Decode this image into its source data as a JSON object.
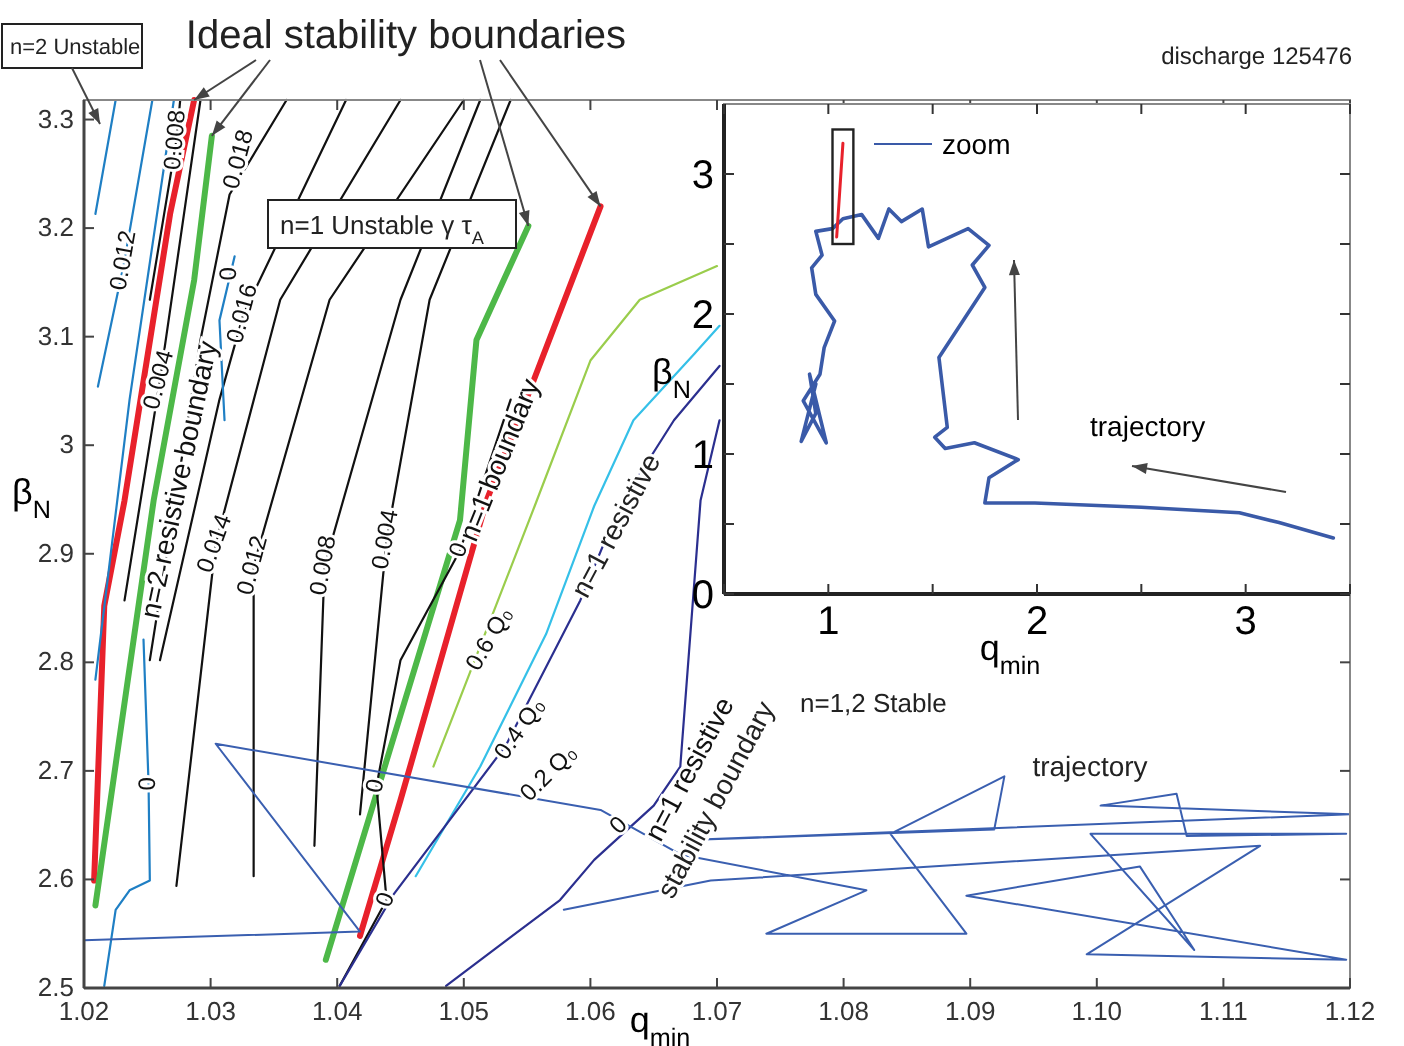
{
  "chart_data": [
    {
      "type": "line",
      "xlabel": "q$_{min}$",
      "ylabel": "β$_{N}$",
      "xlim": [
        1.02,
        1.12
      ],
      "ylim": [
        2.5,
        3.318
      ],
      "xticks": [
        1.02,
        1.03,
        1.04,
        1.05,
        1.06,
        1.07,
        1.08,
        1.09,
        {
          "value": 1.1,
          "label": "1.10"
        },
        1.11,
        1.12
      ],
      "yticks": [
        2.5,
        2.6,
        2.7,
        2.8,
        2.9,
        3,
        3.1,
        3.2,
        3.3
      ],
      "series": [
        {
          "color": "#e8212b",
          "x": [
            1.0287,
            1.0268,
            1.0232,
            1.0216,
            1.0208
          ],
          "values": [
            3.318,
            3.213,
            2.949,
            2.852,
            2.599
          ]
        },
        {
          "color": "#e8212b",
          "x": [
            1.0608,
            1.0549,
            1.0518,
            1.045,
            1.0418
          ],
          "values": [
            3.22,
            3.041,
            2.949,
            2.673,
            2.548
          ]
        },
        {
          "color": "#4db848",
          "x": [
            1.0301,
            1.0287,
            1.0255,
            1.0209
          ],
          "values": [
            3.285,
            3.152,
            2.949,
            2.576
          ]
        },
        {
          "color": "#4db848",
          "x": [
            1.0551,
            1.051,
            1.0497,
            1.0391
          ],
          "values": [
            3.202,
            3.097,
            2.931,
            2.526
          ]
        },
        {
          "color": "#111111",
          "x": [
            1.0252,
            1.0292,
            1.0315,
            1.036
          ],
          "values": [
            2.802,
            3.097,
            3.231,
            3.318
          ]
        },
        {
          "color": "#111111",
          "x": [
            1.026,
            1.0307,
            1.0326,
            1.0407
          ],
          "values": [
            2.802,
            3.042,
            3.121,
            3.318
          ]
        },
        {
          "color": "#111111",
          "x": [
            1.0273,
            1.0304,
            1.0355,
            1.045
          ],
          "values": [
            2.594,
            2.909,
            3.134,
            3.318
          ]
        },
        {
          "color": "#111111",
          "x": [
            1.0334,
            1.0334,
            1.0394,
            1.05
          ],
          "values": [
            2.603,
            2.889,
            3.134,
            3.318
          ]
        },
        {
          "color": "#111111",
          "x": [
            1.0382,
            1.039,
            1.045,
            1.0513
          ],
          "values": [
            2.631,
            2.889,
            3.134,
            3.318
          ]
        },
        {
          "color": "#111111",
          "x": [
            1.0418,
            1.0439,
            1.0473,
            1.0537
          ],
          "values": [
            2.66,
            2.913,
            3.134,
            3.318
          ]
        },
        {
          "color": "#111111",
          "x": [
            1.0402,
            1.0439,
            1.0431,
            1.045,
            1.0497,
            1.0537
          ],
          "values": [
            2.502,
            2.581,
            2.686,
            2.802,
            2.903,
            3.042
          ]
        },
        {
          "color": "#111111",
          "x": [
            1.0252,
            1.0273,
            1.0276
          ],
          "values": [
            3.134,
            3.281,
            3.318
          ]
        },
        {
          "color": "#111111",
          "x": [
            1.0232,
            1.026,
            1.0292
          ],
          "values": [
            2.857,
            3.06,
            3.318
          ]
        },
        {
          "color": "#1f7fc4",
          "x": [
            1.0209,
            1.0225
          ],
          "values": [
            3.213,
            3.318
          ]
        },
        {
          "color": "#1f7fc4",
          "x": [
            1.0211,
            1.0232,
            1.0254
          ],
          "values": [
            3.054,
            3.17,
            3.318
          ]
        },
        {
          "color": "#1f7fc4",
          "x": [
            1.0209,
            1.0236,
            1.0271
          ],
          "values": [
            2.784,
            3.042,
            3.318
          ]
        },
        {
          "color": "#1f7fc4",
          "x": [
            1.0311,
            1.0307,
            1.0319
          ],
          "values": [
            3.023,
            3.115,
            3.174
          ]
        },
        {
          "color": "#1f7fc4",
          "x": [
            1.0216,
            1.0225,
            1.0236,
            1.0252,
            1.0251,
            1.0247
          ],
          "values": [
            2.502,
            2.572,
            2.59,
            2.599,
            2.688,
            2.821
          ]
        },
        {
          "color": "#9acd4c",
          "x": [
            1.07,
            1.0639,
            1.06,
            1.0556,
            1.0476
          ],
          "values": [
            3.165,
            3.134,
            3.078,
            2.944,
            2.704
          ]
        },
        {
          "color": "#35c0e8",
          "x": [
            1.0702,
            1.0682,
            1.0634,
            1.0603,
            1.0565,
            1.0513,
            1.0462
          ],
          "values": [
            3.11,
            3.084,
            3.023,
            2.944,
            2.826,
            2.704,
            2.603
          ]
        },
        {
          "color": "#2b2f8f",
          "x": [
            1.0702,
            1.0666,
            1.0623,
            1.0592,
            1.0533,
            1.0445,
            1.0402
          ],
          "values": [
            3.073,
            3.023,
            2.944,
            2.857,
            2.723,
            2.587,
            2.502
          ]
        },
        {
          "color": "#2b2f8f",
          "x": [
            1.0702,
            1.0687,
            1.0671,
            1.065,
            1.0603,
            1.0576,
            1.0486
          ],
          "values": [
            3.023,
            2.949,
            2.704,
            2.668,
            2.618,
            2.581,
            2.502
          ]
        },
        {
          "color": "#3a5fb0",
          "x": [
            1.02,
            1.0418,
            1.0304,
            1.0608,
            1.0671,
            1.0818,
            1.0739,
            1.0897,
            1.0837,
            1.0927,
            1.0919,
            1.0671,
            1.12,
            1.1003,
            1.1063,
            1.1071,
            1.1197,
            1.0995,
            1.1077,
            1.1034,
            1.0897,
            1.1197,
            1.0992,
            1.1129,
            1.0695,
            1.0579
          ],
          "values": [
            2.544,
            2.552,
            2.725,
            2.664,
            2.623,
            2.59,
            2.55,
            2.55,
            2.642,
            2.695,
            2.646,
            2.636,
            2.66,
            2.668,
            2.679,
            2.64,
            2.642,
            2.642,
            2.535,
            2.612,
            2.585,
            2.526,
            2.531,
            2.631,
            2.599,
            2.572
          ]
        }
      ],
      "annotations": [
        "n=2 Unstable",
        "n=1 Unstable γ τ$_{A}$",
        "discharge 125476",
        "n=1,2 Stable",
        "trajectory",
        "n=1 resistive",
        "stability boundary",
        {
          "text": "0.018",
          "x": 1.0323,
          "y": 3.263
        },
        {
          "text": "0.016",
          "x": 1.0326,
          "y": 3.121
        },
        {
          "text": "0.014",
          "x": 1.0304,
          "y": 2.909
        },
        {
          "text": "0.012",
          "x": 1.0334,
          "y": 2.889
        },
        {
          "text": "0.008",
          "x": 1.039,
          "y": 2.889
        },
        {
          "text": "0.004",
          "x": 1.0439,
          "y": 2.913
        },
        {
          "text": "0.012",
          "x": 1.0232,
          "y": 3.17
        },
        {
          "text": "0.008",
          "x": 1.0273,
          "y": 3.281
        },
        {
          "text": "0.004",
          "x": 1.026,
          "y": 3.06
        },
        {
          "text": "0",
          "x": 1.0315,
          "y": 3.158
        },
        {
          "text": "0",
          "x": 1.0251,
          "y": 2.688
        },
        {
          "text": "0",
          "x": 1.0439,
          "y": 2.581
        },
        {
          "text": "0",
          "x": 1.0431,
          "y": 2.686
        },
        {
          "text": "0",
          "x": 1.0497,
          "y": 2.903
        },
        {
          "text": "0",
          "x": 1.0623,
          "y": 2.649
        },
        {
          "text": "0.6 Q₀",
          "x": 1.0521,
          "y": 2.821
        },
        {
          "text": "0.4 Q₀",
          "x": 1.0545,
          "y": 2.738
        },
        {
          "text": "0.2 Q₀",
          "x": 1.0533,
          "y": 2.723
        },
        {
          "text": "n=2 resistive boundary",
          "x": 1.0276,
          "y": 2.968
        },
        {
          "text": "n=1 boundary",
          "x": 1.0529,
          "y": 2.986
        },
        {
          "text": "n=1 resistive",
          "x": 1.0679,
          "y": 2.701
        },
        {
          "text": "Ideal stability boundaries",
          "x": 1.0608,
          "y": 3.22
        }
      ]
    },
    {
      "type": "line",
      "xlabel": "q$_{min}$",
      "ylabel": "β$_{N}$",
      "xlim": [
        0.5,
        3.5
      ],
      "ylim": [
        0,
        3.5
      ],
      "xticks": [
        {
          "value": 0.5,
          "label": null
        },
        1,
        {
          "value": 1.5,
          "label": null
        },
        2,
        {
          "value": 2.5,
          "label": null
        },
        3,
        {
          "value": 3.5,
          "label": null
        }
      ],
      "yticks": [
        0,
        {
          "value": 0.5,
          "label": null
        },
        1,
        {
          "value": 1.5,
          "label": null
        },
        2,
        {
          "value": 2.5,
          "label": null
        },
        3
      ],
      "series": [
        {
          "color": "#3a5aa8",
          "x": [
            3.42,
            3.16,
            2.97,
            2.5,
            1.99,
            1.75,
            1.77,
            1.91,
            1.7,
            1.56,
            1.51,
            1.57,
            1.53,
            1.75,
            1.69,
            1.77,
            1.67,
            1.48,
            1.45,
            1.35,
            1.29,
            1.24,
            1.16,
            1.07,
            1.02,
            0.94,
            0.97,
            0.92,
            0.94,
            1.03,
            0.98,
            0.96,
            0.88,
            0.99,
            0.91,
            0.94,
            0.87,
            0.94
          ],
          "values": [
            0.4,
            0.51,
            0.58,
            0.62,
            0.65,
            0.65,
            0.83,
            0.96,
            1.08,
            1.04,
            1.12,
            1.19,
            1.69,
            2.19,
            2.35,
            2.49,
            2.61,
            2.48,
            2.75,
            2.66,
            2.75,
            2.54,
            2.71,
            2.68,
            2.61,
            2.59,
            2.42,
            2.33,
            2.14,
            1.95,
            1.76,
            1.57,
            1.38,
            1.08,
            1.57,
            1.29,
            1.09,
            1.5
          ]
        },
        {
          "color": "#e8212b",
          "x": [
            1.04,
            1.07
          ],
          "values": [
            2.55,
            3.22
          ]
        }
      ],
      "annotations": [
        "zoom",
        "trajectory"
      ]
    }
  ]
}
